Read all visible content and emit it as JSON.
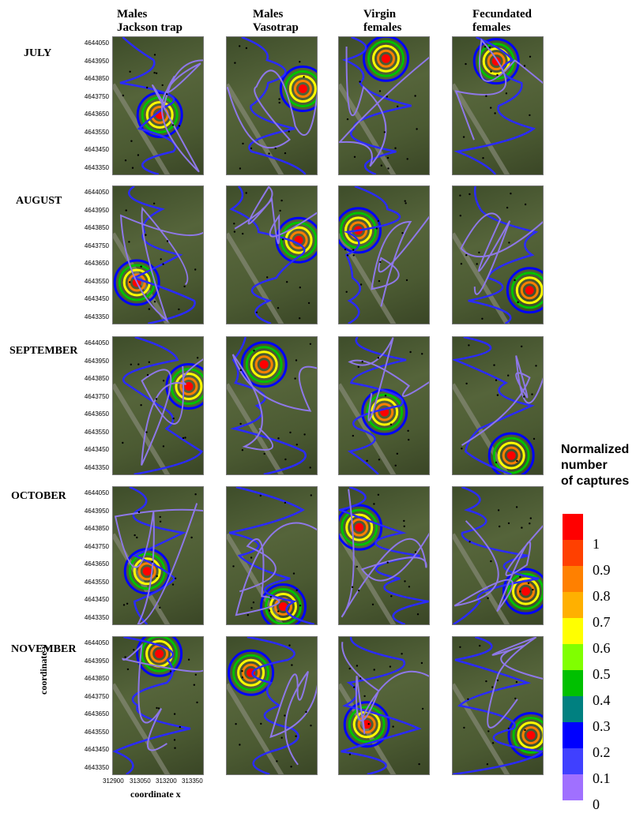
{
  "columns": [
    {
      "title": "Males\nJackson trap"
    },
    {
      "title": "Males\nVasotrap"
    },
    {
      "title": "Virgin\nfemales"
    },
    {
      "title": "Fecundated\nfemales"
    }
  ],
  "rows": [
    {
      "label": "JULY"
    },
    {
      "label": "AUGUST"
    },
    {
      "label": "SEPTEMBER"
    },
    {
      "label": "OCTOBER"
    },
    {
      "label": "NOVEMBER"
    }
  ],
  "y_ticks": [
    "4644050",
    "4643950",
    "4643850",
    "4643750",
    "4643650",
    "4643550",
    "4643450",
    "4643350"
  ],
  "x_ticks": [
    "312900",
    "313050",
    "313200",
    "313350"
  ],
  "axis": {
    "xlabel": "coordinate x",
    "ylabel": "coordinate y"
  },
  "legend": {
    "title": "Normalized\nnumber\nof captures",
    "items": [
      {
        "label": "1",
        "color": "#ff0000"
      },
      {
        "label": "0.9",
        "color": "#ff4000"
      },
      {
        "label": "0.8",
        "color": "#ff8000"
      },
      {
        "label": "0.7",
        "color": "#ffb000"
      },
      {
        "label": "0.6",
        "color": "#ffff00"
      },
      {
        "label": "0.5",
        "color": "#80ff00"
      },
      {
        "label": "0.4",
        "color": "#00c000"
      },
      {
        "label": "0.3",
        "color": "#008080"
      },
      {
        "label": "0.2",
        "color": "#0000ff"
      },
      {
        "label": "0.1",
        "color": "#4040ff"
      },
      {
        "label": "0",
        "color": "#a070ff"
      }
    ]
  }
}
